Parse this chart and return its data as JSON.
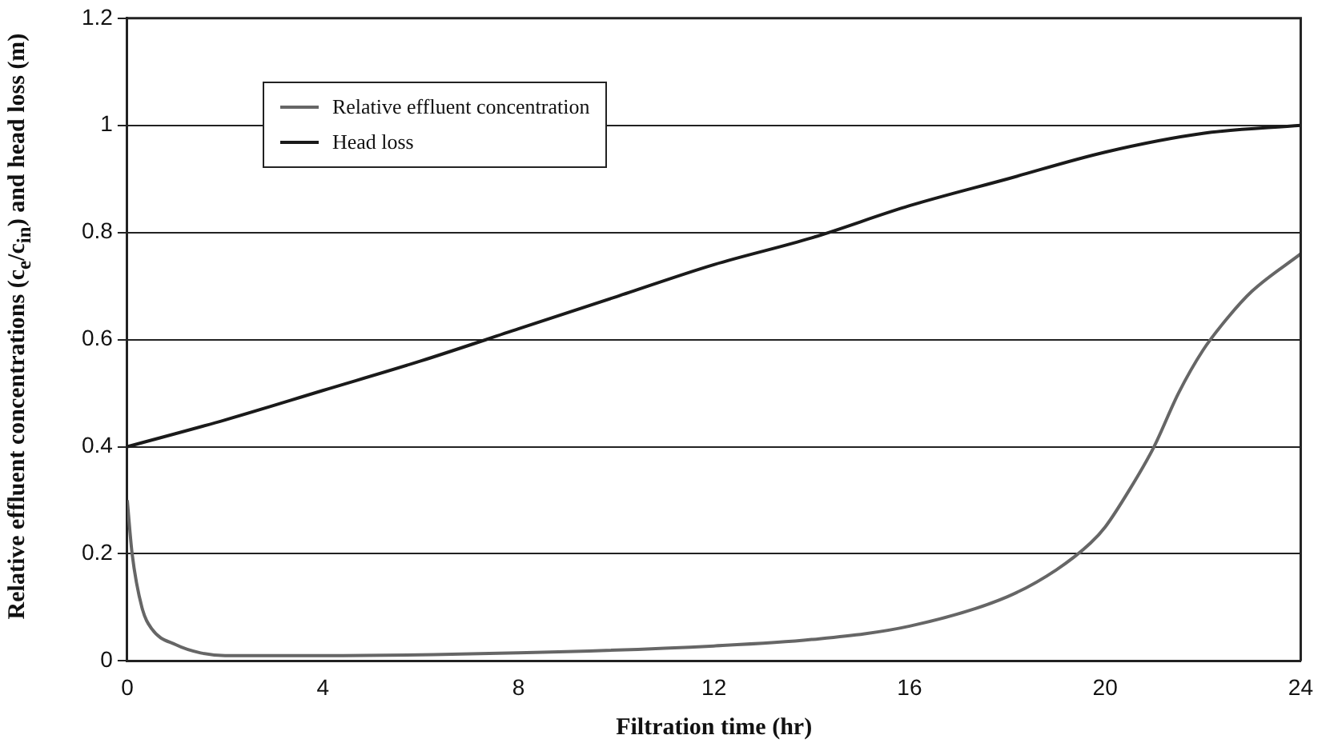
{
  "chart_data": {
    "type": "line",
    "xlabel": "Filtration time (hr)",
    "ylabel": "Relative effluent concentrations (c$_{e}$/c$_{in}$) and head loss (m)",
    "xlim": [
      0,
      24
    ],
    "xticks": [
      0,
      4,
      8,
      12,
      16,
      20,
      24
    ],
    "ylim": [
      0,
      1.2
    ],
    "yticks": [
      0,
      0.2,
      0.4,
      0.6,
      0.8,
      1,
      1.2
    ],
    "grid": "y",
    "legend": "top left",
    "marker": "none",
    "line_style": "solid",
    "series": [
      {
        "name": "Relative effluent concentration",
        "color": "#666666",
        "x": [
          0,
          0.1,
          0.3,
          0.5,
          1,
          1.5,
          2,
          4,
          8,
          12,
          14,
          16,
          18,
          19,
          19.7,
          20,
          20.5,
          21,
          21.5,
          22,
          22.5,
          23,
          24
        ],
        "values": [
          0.3,
          0.2,
          0.1,
          0.06,
          0.03,
          0.015,
          0.01,
          0.01,
          0.015,
          0.028,
          0.04,
          0.065,
          0.12,
          0.17,
          0.22,
          0.25,
          0.32,
          0.4,
          0.5,
          0.58,
          0.64,
          0.69,
          0.76
        ]
      },
      {
        "name": "Head loss",
        "color": "#1a1a1a",
        "x": [
          0,
          2,
          4,
          6,
          8,
          10,
          12,
          14,
          16,
          18,
          20,
          22,
          24
        ],
        "values": [
          0.4,
          0.45,
          0.505,
          0.56,
          0.62,
          0.68,
          0.74,
          0.79,
          0.85,
          0.9,
          0.95,
          0.985,
          1
        ]
      }
    ]
  }
}
